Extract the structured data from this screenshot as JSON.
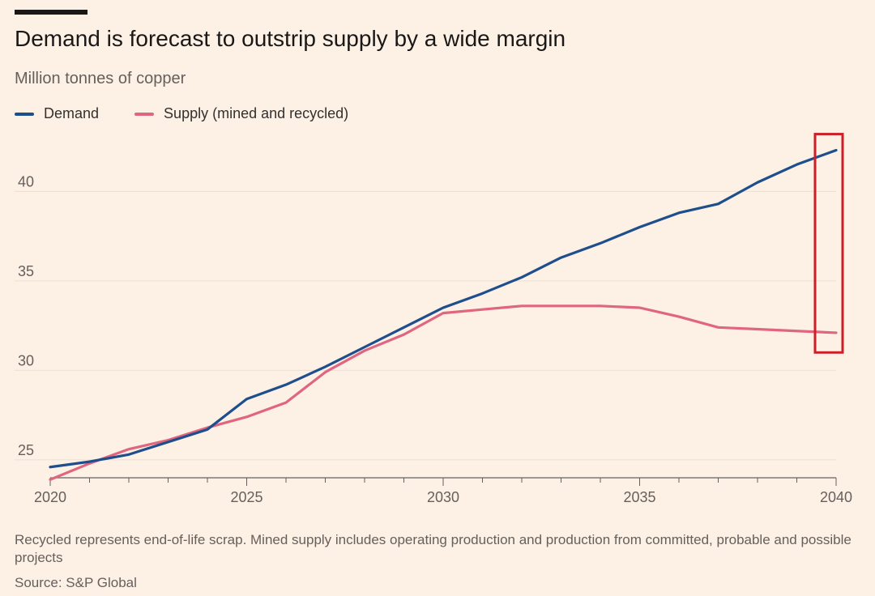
{
  "title": "Demand is forecast to outstrip supply by a wide margin",
  "subtitle": "Million tonnes of copper",
  "footnote": "Recycled represents end-of-life scrap. Mined supply includes operating production and production from committed, probable and possible projects",
  "source": "Source: S&P Global",
  "colors": {
    "background": "#fdf1e6",
    "demand": "#1f4e8c",
    "supply": "#e0667f",
    "highlight_box": "#cc1f28",
    "grid": "#ece0d4"
  },
  "chart_data": {
    "type": "line",
    "title": "Demand is forecast to outstrip supply by a wide margin",
    "ylabel": "Million tonnes of copper",
    "xlabel": "",
    "x": [
      2020,
      2021,
      2022,
      2023,
      2024,
      2025,
      2026,
      2027,
      2028,
      2029,
      2030,
      2031,
      2032,
      2033,
      2034,
      2035,
      2036,
      2037,
      2038,
      2039,
      2040
    ],
    "series": [
      {
        "name": "Demand",
        "color": "#1f4e8c",
        "values": [
          24.6,
          24.9,
          25.3,
          26.0,
          26.7,
          28.4,
          29.2,
          30.2,
          31.3,
          32.4,
          33.5,
          34.3,
          35.2,
          36.3,
          37.1,
          38.0,
          38.8,
          39.3,
          40.5,
          41.5,
          42.3
        ]
      },
      {
        "name": "Supply (mined and recycled)",
        "color": "#e0667f",
        "values": [
          23.9,
          24.8,
          25.6,
          26.1,
          26.8,
          27.4,
          28.2,
          29.9,
          31.1,
          32.0,
          33.2,
          33.4,
          33.6,
          33.6,
          33.6,
          33.5,
          33.0,
          32.4,
          32.3,
          32.2,
          32.1
        ]
      }
    ],
    "xlim": [
      2020,
      2040
    ],
    "ylim": [
      24,
      43
    ],
    "yticks": [
      25,
      30,
      35,
      40
    ],
    "xticks": [
      2020,
      2025,
      2030,
      2035,
      2040
    ],
    "grid": "horizontal",
    "legend_position": "top-left",
    "highlight": {
      "x": 2040,
      "y_range": [
        31,
        43.2
      ],
      "note": "red rectangle around 2040 end values"
    }
  }
}
